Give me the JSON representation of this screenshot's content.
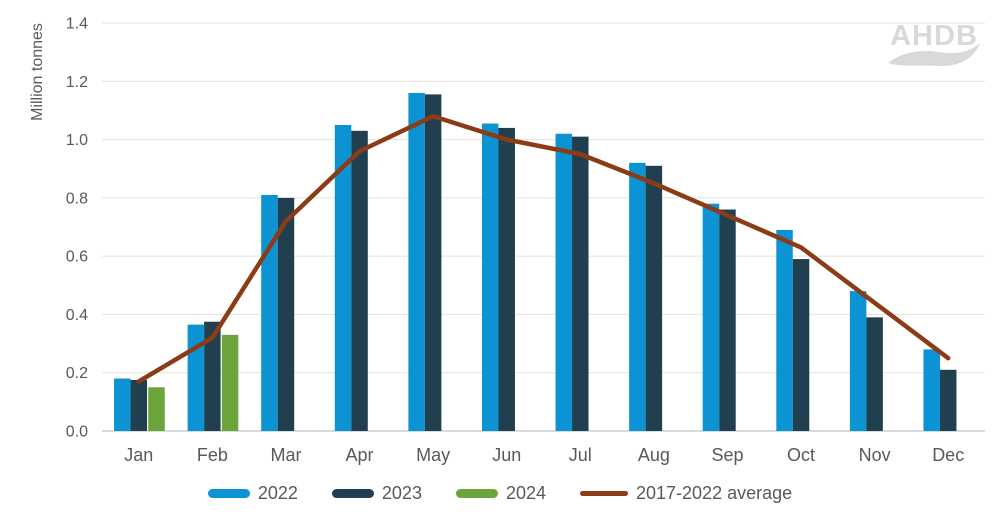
{
  "chart_data": {
    "type": "bar",
    "title": "",
    "ylabel": "Million tonnes",
    "categories": [
      "Jan",
      "Feb",
      "Mar",
      "Apr",
      "May",
      "Jun",
      "Jul",
      "Aug",
      "Sep",
      "Oct",
      "Nov",
      "Dec"
    ],
    "ylim": [
      0,
      1.4
    ],
    "ytick_labels": [
      "0.0",
      "0.2",
      "0.4",
      "0.6",
      "0.8",
      "1.0",
      "1.2",
      "1.4"
    ],
    "grid": true,
    "legend_position": "bottom",
    "series": [
      {
        "name": "2022",
        "type": "bar",
        "color": "#0b93d3",
        "values": [
          0.18,
          0.365,
          0.81,
          1.05,
          1.16,
          1.055,
          1.02,
          0.92,
          0.78,
          0.69,
          0.48,
          0.28
        ]
      },
      {
        "name": "2023",
        "type": "bar",
        "color": "#20404f",
        "values": [
          0.175,
          0.375,
          0.8,
          1.03,
          1.155,
          1.04,
          1.01,
          0.91,
          0.76,
          0.59,
          0.39,
          0.21
        ]
      },
      {
        "name": "2024",
        "type": "bar",
        "color": "#6ba43a",
        "values": [
          0.15,
          0.33,
          null,
          null,
          null,
          null,
          null,
          null,
          null,
          null,
          null,
          null
        ]
      },
      {
        "name": "2017-2022 average",
        "type": "line",
        "color": "#8c3b17",
        "values": [
          0.17,
          0.32,
          0.72,
          0.96,
          1.08,
          1.0,
          0.95,
          0.85,
          0.74,
          0.63,
          0.44,
          0.25
        ]
      }
    ]
  },
  "branding": {
    "logo_text": "AHDB",
    "logo_color": "#d9d9d9"
  },
  "style": {
    "axis_text_color": "#595959",
    "grid_color": "#e2e2e2",
    "axis_line_color": "#d8dcdf",
    "background": "#ffffff"
  }
}
